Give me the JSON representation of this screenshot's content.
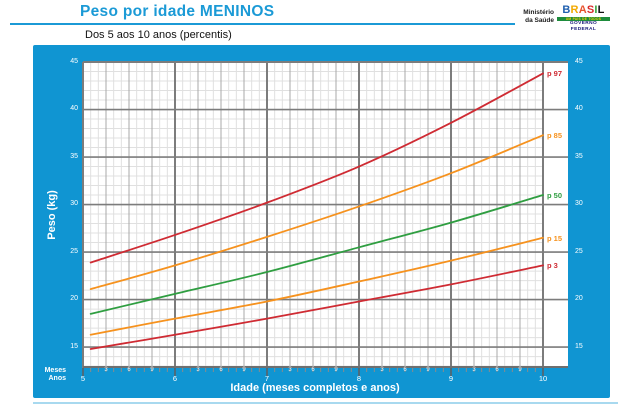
{
  "page": {
    "title": "Peso por idade MENINOS",
    "subtitle": "Dos 5 aos 10 anos (percentis)"
  },
  "ministry": {
    "line1": "Ministério",
    "line2": "da Saúde"
  },
  "logo": {
    "word": "BRASIL",
    "letters": [
      {
        "ch": "B",
        "color": "#1f5fae"
      },
      {
        "ch": "R",
        "color": "#f2a900"
      },
      {
        "ch": "A",
        "color": "#e8542f"
      },
      {
        "ch": "S",
        "color": "#d92b2b"
      },
      {
        "ch": "I",
        "color": "#35a23c"
      },
      {
        "ch": "L",
        "color": "#111111"
      }
    ],
    "tagline": "UM PAÍS DE TODOS",
    "gov": "GOVERNO FEDERAL"
  },
  "chart": {
    "ylabel": "Peso (kg)",
    "xlabel": "Idade (meses completos e anos)",
    "rows": {
      "meses": "Meses",
      "anos": "Anos"
    }
  },
  "colors": {
    "accent_blue": "#1b9ad6",
    "panel_blue": "#1095d2",
    "footer_line": "#a8d9ef",
    "grid_minor": "#e0e0e0",
    "grid_mid": "#a8a8a8",
    "grid_major": "#7c7c7c",
    "percentile_red": "#cf2b33",
    "percentile_orange": "#f6921e",
    "percentile_green": "#2f9e41"
  },
  "chart_data": {
    "type": "line",
    "title": "Peso por idade MENINOS",
    "subtitle": "Dos 5 aos 10 anos (percentis)",
    "xlabel": "Idade (meses completos e anos)",
    "ylabel": "Peso (kg)",
    "x_unit": "months",
    "x_months": [
      61,
      72,
      84,
      96,
      108,
      120
    ],
    "x_year_ticks": [
      5,
      6,
      7,
      8,
      9,
      10
    ],
    "x_month_minor_ticks": [
      3,
      6,
      9
    ],
    "xlim_months": [
      60,
      120
    ],
    "ylim": [
      12.8,
      45
    ],
    "y_major_ticks": [
      15,
      20,
      25,
      30,
      35,
      40,
      45
    ],
    "y_tick_sides": [
      "left",
      "right"
    ],
    "y_minor_step_kg": 1,
    "x_minor_step_months": 1,
    "grid": "minor monthly / 1 kg, medium every 3 months, major yearly / 5 kg",
    "legend_position": "labels at right end of each curve",
    "series": [
      {
        "name": "p 97",
        "color": "#cf2b33",
        "values": [
          23.9,
          26.8,
          30.2,
          34.0,
          38.6,
          43.8
        ]
      },
      {
        "name": "p 85",
        "color": "#f6921e",
        "values": [
          21.1,
          23.6,
          26.6,
          29.8,
          33.3,
          37.3
        ]
      },
      {
        "name": "p 50",
        "color": "#2f9e41",
        "values": [
          18.5,
          20.6,
          22.9,
          25.5,
          28.1,
          31.0
        ]
      },
      {
        "name": "p 15",
        "color": "#f6921e",
        "values": [
          16.3,
          18.0,
          19.8,
          21.9,
          24.1,
          26.5
        ]
      },
      {
        "name": "p 3",
        "color": "#cf2b33",
        "values": [
          14.8,
          16.3,
          18.0,
          19.8,
          21.6,
          23.6
        ]
      }
    ]
  }
}
